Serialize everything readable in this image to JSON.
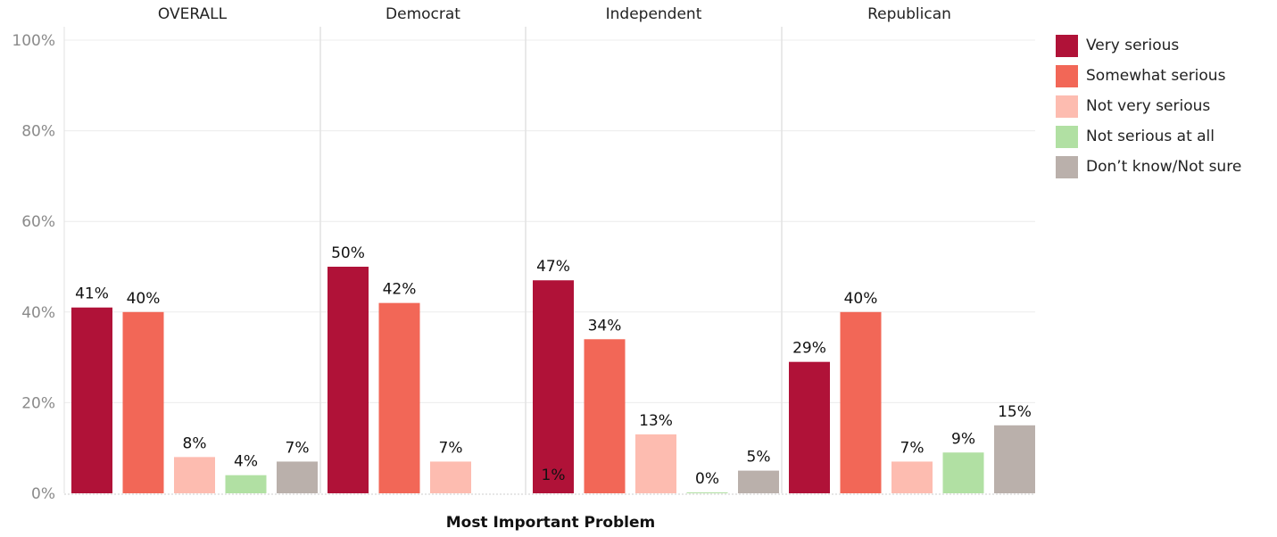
{
  "chart_data": {
    "type": "bar",
    "xlabel": "Most Important Problem",
    "ylabel": "",
    "ylim": [
      0,
      100
    ],
    "yticks": [
      "0%",
      "20%",
      "40%",
      "60%",
      "80%",
      "100%"
    ],
    "yticks_values": [
      0,
      20,
      40,
      60,
      80,
      100
    ],
    "grid": true,
    "legend_position": "right",
    "panels": [
      "OVERALL",
      "Democrat",
      "Independent",
      "Republican"
    ],
    "series": [
      {
        "name": "Very serious",
        "color": "#b01238",
        "values": [
          41,
          50,
          47,
          29
        ],
        "labels": [
          "41%",
          "50%",
          "47%",
          "29%"
        ]
      },
      {
        "name": "Somewhat serious",
        "color": "#f26757",
        "values": [
          40,
          42,
          34,
          40
        ],
        "labels": [
          "40%",
          "42%",
          "34%",
          "40%"
        ]
      },
      {
        "name": "Not very serious",
        "color": "#fdbcb0",
        "values": [
          8,
          7,
          13,
          7
        ],
        "labels": [
          "8%",
          "7%",
          "13%",
          "7%"
        ]
      },
      {
        "name": "Not serious at all",
        "color": "#b1e0a3",
        "values": [
          4,
          null,
          0,
          9
        ],
        "labels": [
          "4%",
          "",
          "0%",
          "9%"
        ]
      },
      {
        "name": "Don’t know/Not sure",
        "color": "#bab0ab",
        "values": [
          7,
          1,
          5,
          15
        ],
        "labels": [
          "7%",
          "1%",
          "5%",
          "15%"
        ]
      }
    ]
  }
}
